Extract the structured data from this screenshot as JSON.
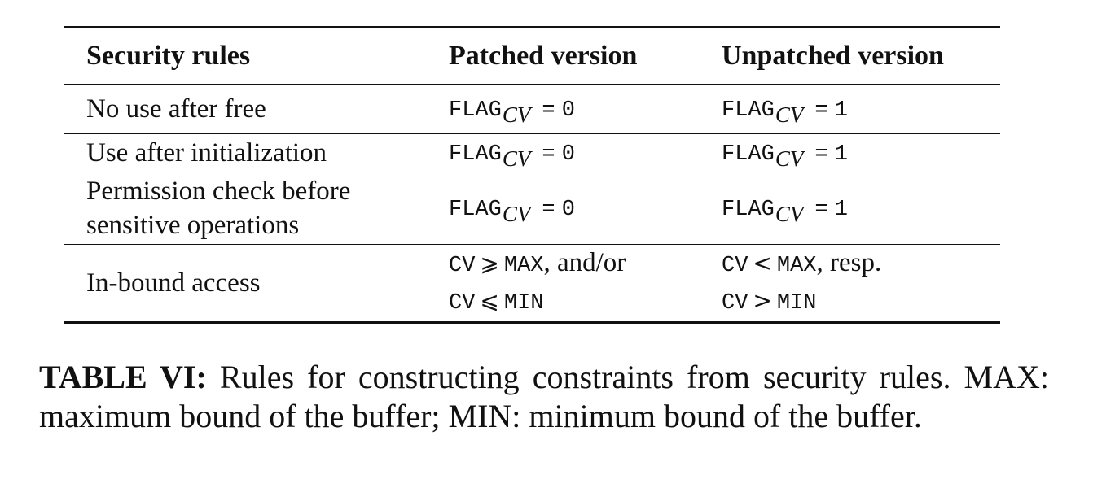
{
  "table": {
    "headers": [
      "Security rules",
      "Patched version",
      "Unpatched version"
    ],
    "rows": [
      {
        "rule": "No use after free",
        "patched": {
          "flag": "FLAG",
          "sub": "CV",
          "eq": "=",
          "val": "0"
        },
        "unpatched": {
          "flag": "FLAG",
          "sub": "CV",
          "eq": "=",
          "val": "1"
        }
      },
      {
        "rule": "Use after initialization",
        "patched": {
          "flag": "FLAG",
          "sub": "CV",
          "eq": "=",
          "val": "0"
        },
        "unpatched": {
          "flag": "FLAG",
          "sub": "CV",
          "eq": "=",
          "val": "1"
        }
      },
      {
        "rule_lines": [
          "Permission check before",
          "sensitive operations"
        ],
        "patched": {
          "flag": "FLAG",
          "sub": "CV",
          "eq": "=",
          "val": "0"
        },
        "unpatched": {
          "flag": "FLAG",
          "sub": "CV",
          "eq": "=",
          "val": "1"
        }
      },
      {
        "rule": "In-bound access",
        "patched": {
          "line1": {
            "a": "CV",
            "op": "⩾",
            "b": "MAX",
            "tail": ", and/or"
          },
          "line2": {
            "a": "CV",
            "op": "⩽",
            "b": "MIN"
          }
        },
        "unpatched": {
          "line1": {
            "a": "CV",
            "op": "<",
            "b": "MAX",
            "tail": ", resp."
          },
          "line2": {
            "a": "CV",
            "op": ">",
            "b": "MIN"
          }
        }
      }
    ]
  },
  "caption": {
    "label": "TABLE VI:",
    "text": " Rules for constructing constraints from security rules. MAX: maximum bound of the buffer; MIN: minimum bound of the buffer."
  }
}
